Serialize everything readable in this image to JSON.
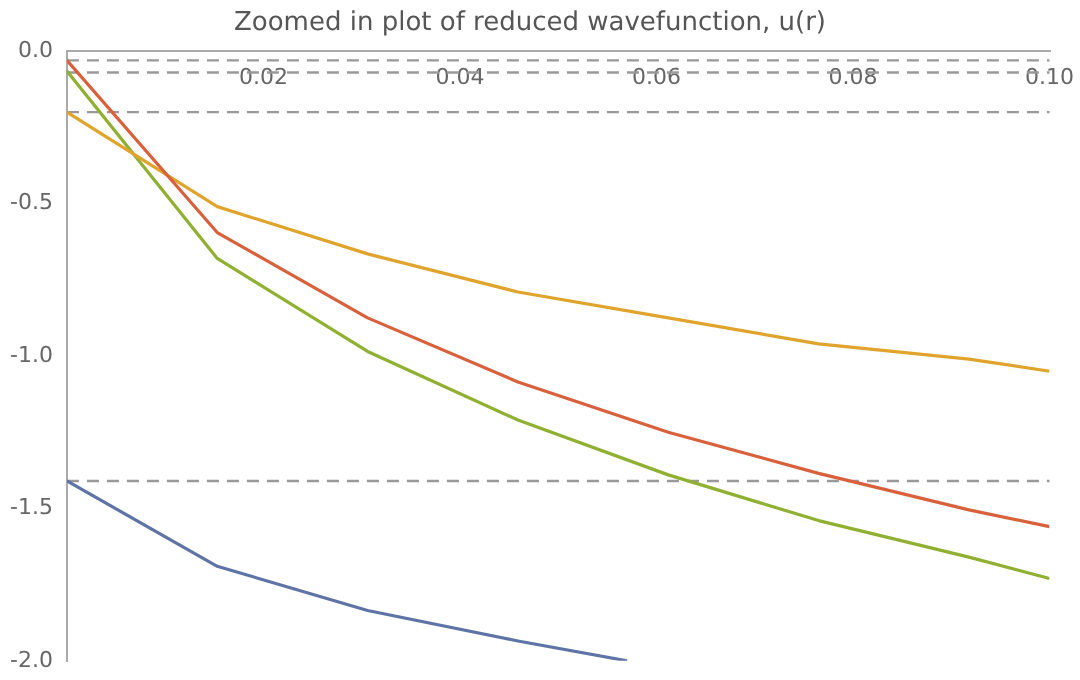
{
  "chart_data": {
    "type": "line",
    "title": "Zoomed in plot of reduced wavefunction, u(r)",
    "xlim": [
      0,
      0.1
    ],
    "xticks": [
      0.02,
      0.04,
      0.06,
      0.08,
      {
        "value": 0.1,
        "label": "0.10"
      }
    ],
    "ylim": [
      -2,
      0
    ],
    "yticks": [
      {
        "value": 0,
        "label": "0.0"
      },
      -0.5,
      {
        "value": -1,
        "label": "-1.0"
      },
      -1.5,
      {
        "value": -2,
        "label": "-2.0"
      }
    ],
    "grid": false,
    "legend": false,
    "marker": "none",
    "line_style": "solid",
    "series": [
      {
        "color": "#5e73a6",
        "x": [
          0,
          0.0153,
          0.0306,
          0.0459,
          0.057
        ],
        "values": [
          -1.41,
          -1.69,
          -1.835,
          -1.935,
          -2.0
        ]
      },
      {
        "color": "#d8613c",
        "x": [
          0,
          0.0153,
          0.0306,
          0.0459,
          0.0612,
          0.0765,
          0.0918,
          0.1
        ],
        "values": [
          -0.03,
          -0.595,
          -0.875,
          -1.085,
          -1.25,
          -1.385,
          -1.505,
          -1.56
        ]
      },
      {
        "color": "#e0a42c",
        "x": [
          0,
          0.0153,
          0.0306,
          0.0459,
          0.0612,
          0.0765,
          0.0918,
          0.1
        ],
        "values": [
          -0.2,
          -0.51,
          -0.665,
          -0.79,
          -0.875,
          -0.96,
          -1.01,
          -1.05
        ]
      },
      {
        "color": "#8fb031",
        "x": [
          0,
          0.0153,
          0.0306,
          0.0459,
          0.0612,
          0.0765,
          0.0918,
          0.1
        ],
        "values": [
          -0.065,
          -0.68,
          -0.985,
          -1.21,
          -1.39,
          -1.54,
          -1.66,
          -1.73
        ]
      }
    ],
    "ref_lines": [
      {
        "axis": "y",
        "value": -0.03,
        "color": "#999999",
        "line_style": "dashed"
      },
      {
        "axis": "y",
        "value": -0.07,
        "color": "#999999",
        "line_style": "dashed"
      },
      {
        "axis": "y",
        "value": -0.2,
        "color": "#999999",
        "line_style": "dashed"
      },
      {
        "axis": "y",
        "value": -1.41,
        "color": "#999999",
        "line_style": "dashed"
      }
    ]
  }
}
